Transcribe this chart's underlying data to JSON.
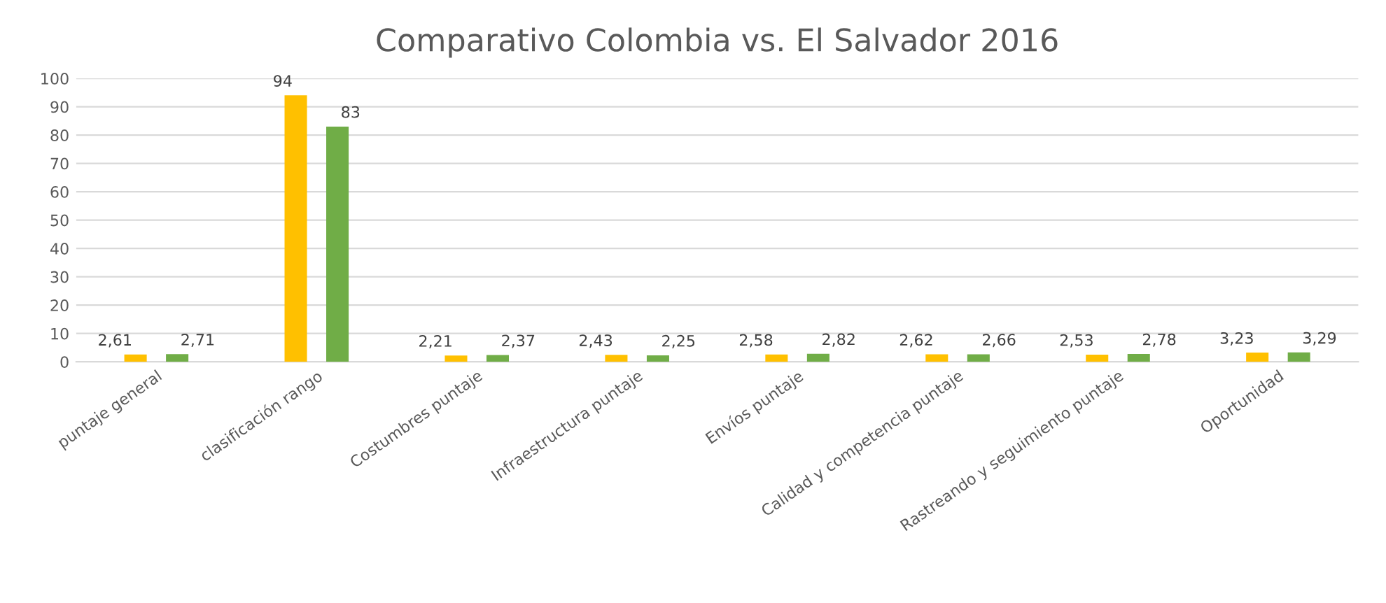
{
  "chart_data": {
    "type": "bar",
    "title": "Comparativo Colombia vs. El Salvador 2016",
    "categories": [
      "puntaje general",
      "clasificación rango",
      "Costumbres puntaje",
      "Infraestructura puntaje",
      "Envíos puntaje",
      "Calidad y competencia puntaje",
      "Rastreando y seguimiento puntaje",
      "Oportunidad"
    ],
    "series": [
      {
        "color": "#ffc000",
        "values": [
          2.61,
          94,
          2.21,
          2.43,
          2.58,
          2.62,
          2.53,
          3.23
        ],
        "value_labels": [
          "2,61",
          "94",
          "2,21",
          "2,43",
          "2,58",
          "2,62",
          "2,53",
          "3,23"
        ]
      },
      {
        "color": "#70ad47",
        "values": [
          2.71,
          83,
          2.37,
          2.25,
          2.82,
          2.66,
          2.78,
          3.29
        ],
        "value_labels": [
          "2,71",
          "83",
          "2,37",
          "2,25",
          "2,82",
          "2,66",
          "2,78",
          "3,29"
        ]
      }
    ],
    "ylim": [
      0,
      100
    ],
    "yticks": [
      0,
      10,
      20,
      30,
      40,
      50,
      60,
      70,
      80,
      90,
      100
    ],
    "grid": "y",
    "legend": false
  }
}
